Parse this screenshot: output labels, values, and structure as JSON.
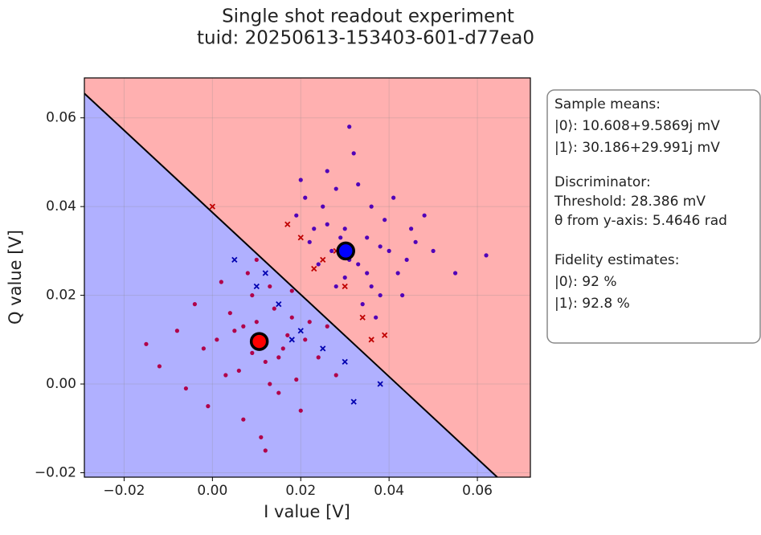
{
  "chart_data": {
    "type": "scatter",
    "title": [
      "Single shot readout experiment",
      "tuid: 20250613-153403-601-d77ea0"
    ],
    "x_label": "I value [V]",
    "y_label": "Q value [V]",
    "xlim": [
      -0.029,
      0.072
    ],
    "ylim": [
      -0.021,
      0.069
    ],
    "xticks": [
      {
        "value": -0.02,
        "label": "−0.02"
      },
      {
        "value": 0,
        "label": "0.00"
      },
      0.02,
      0.04,
      0.06
    ],
    "yticks": [
      {
        "value": -0.02,
        "label": "−0.02"
      },
      {
        "value": 0,
        "label": "0.00"
      },
      0.02,
      0.04,
      0.06
    ],
    "grid": true,
    "regions": {
      "above": "#ffb0b0",
      "below": "#b0b0ff"
    },
    "decision_boundary": {
      "x": [
        -0.029,
        0.0645
      ],
      "y": [
        0.0655,
        -0.021
      ],
      "color": "#000000"
    },
    "series": [
      {
        "color": "#b0004a",
        "marker": "dot",
        "x": [
          0.005,
          0.012,
          0.018,
          -0.002,
          0.009,
          0.015,
          0.021,
          0.003,
          -0.008,
          0.01,
          0.007,
          0.024,
          0.013,
          -0.004,
          0.019,
          0.001,
          0.016,
          0.011,
          0.026,
          -0.012,
          0.008,
          0.014,
          0.006,
          0.022,
          -0.001,
          0.017,
          0.004,
          0.012,
          0.009,
          0.028,
          -0.015,
          0.02,
          0.002,
          0.013,
          0.01,
          -0.006,
          0.018,
          0.007,
          0.015,
          0.011
        ],
        "y": [
          0.012,
          0.005,
          0.015,
          0.008,
          0.02,
          -0.002,
          0.01,
          0.002,
          0.012,
          0.014,
          -0.008,
          0.006,
          0.022,
          0.018,
          0.001,
          0.01,
          0.008,
          -0.012,
          0.013,
          0.004,
          0.025,
          0.017,
          0.003,
          0.014,
          -0.005,
          0.011,
          0.016,
          -0.015,
          0.007,
          0.002,
          0.009,
          -0.006,
          0.023,
          0.0,
          0.028,
          -0.001,
          0.021,
          0.013,
          0.006,
          0.009
        ]
      },
      {
        "color": "#5000b8",
        "marker": "dot",
        "x": [
          0.03,
          0.025,
          0.035,
          0.04,
          0.022,
          0.028,
          0.033,
          0.045,
          0.019,
          0.038,
          0.031,
          0.026,
          0.042,
          0.036,
          0.024,
          0.029,
          0.05,
          0.034,
          0.021,
          0.039,
          0.027,
          0.032,
          0.044,
          0.037,
          0.023,
          0.041,
          0.03,
          0.035,
          0.048,
          0.026,
          0.033,
          0.055,
          0.028,
          0.043,
          0.031,
          0.038,
          0.02,
          0.036,
          0.046,
          0.062
        ],
        "y": [
          0.035,
          0.04,
          0.025,
          0.03,
          0.032,
          0.022,
          0.045,
          0.035,
          0.038,
          0.02,
          0.028,
          0.048,
          0.025,
          0.04,
          0.027,
          0.033,
          0.03,
          0.018,
          0.042,
          0.037,
          0.03,
          0.052,
          0.028,
          0.015,
          0.035,
          0.042,
          0.024,
          0.033,
          0.038,
          0.036,
          0.027,
          0.025,
          0.044,
          0.02,
          0.058,
          0.031,
          0.046,
          0.022,
          0.032,
          0.029
        ]
      },
      {
        "color": "#c00000",
        "marker": "cross",
        "x": [
          0.02,
          0.025,
          0.03,
          0.034,
          0.017,
          0.028,
          0.036,
          0.023,
          0.039,
          0.0
        ],
        "y": [
          0.033,
          0.028,
          0.022,
          0.015,
          0.036,
          0.03,
          0.01,
          0.026,
          0.011,
          0.04
        ]
      },
      {
        "color": "#0000b0",
        "marker": "cross",
        "x": [
          0.005,
          0.01,
          0.015,
          0.02,
          0.025,
          0.03,
          0.018,
          0.012,
          0.032,
          0.038
        ],
        "y": [
          0.028,
          0.022,
          0.018,
          0.012,
          0.008,
          0.005,
          0.01,
          0.025,
          -0.004,
          0.0
        ]
      },
      {
        "color": "#ff0000",
        "marker": "mean",
        "x": [
          0.010608
        ],
        "y": [
          0.0095869
        ]
      },
      {
        "color": "#0000ff",
        "marker": "mean",
        "x": [
          0.030186
        ],
        "y": [
          0.029991
        ]
      }
    ],
    "annotation": [
      [
        "Sample means:",
        "|0⟩: 10.608+9.5869j mV",
        "|1⟩: 30.186+29.991j mV"
      ],
      [
        "Discriminator:",
        "Threshold: 28.386 mV",
        "θ from y-axis: 5.4646 rad"
      ],
      [
        "Fidelity estimates:",
        "|0⟩: 92 %",
        "|1⟩: 92.8 %"
      ]
    ]
  }
}
